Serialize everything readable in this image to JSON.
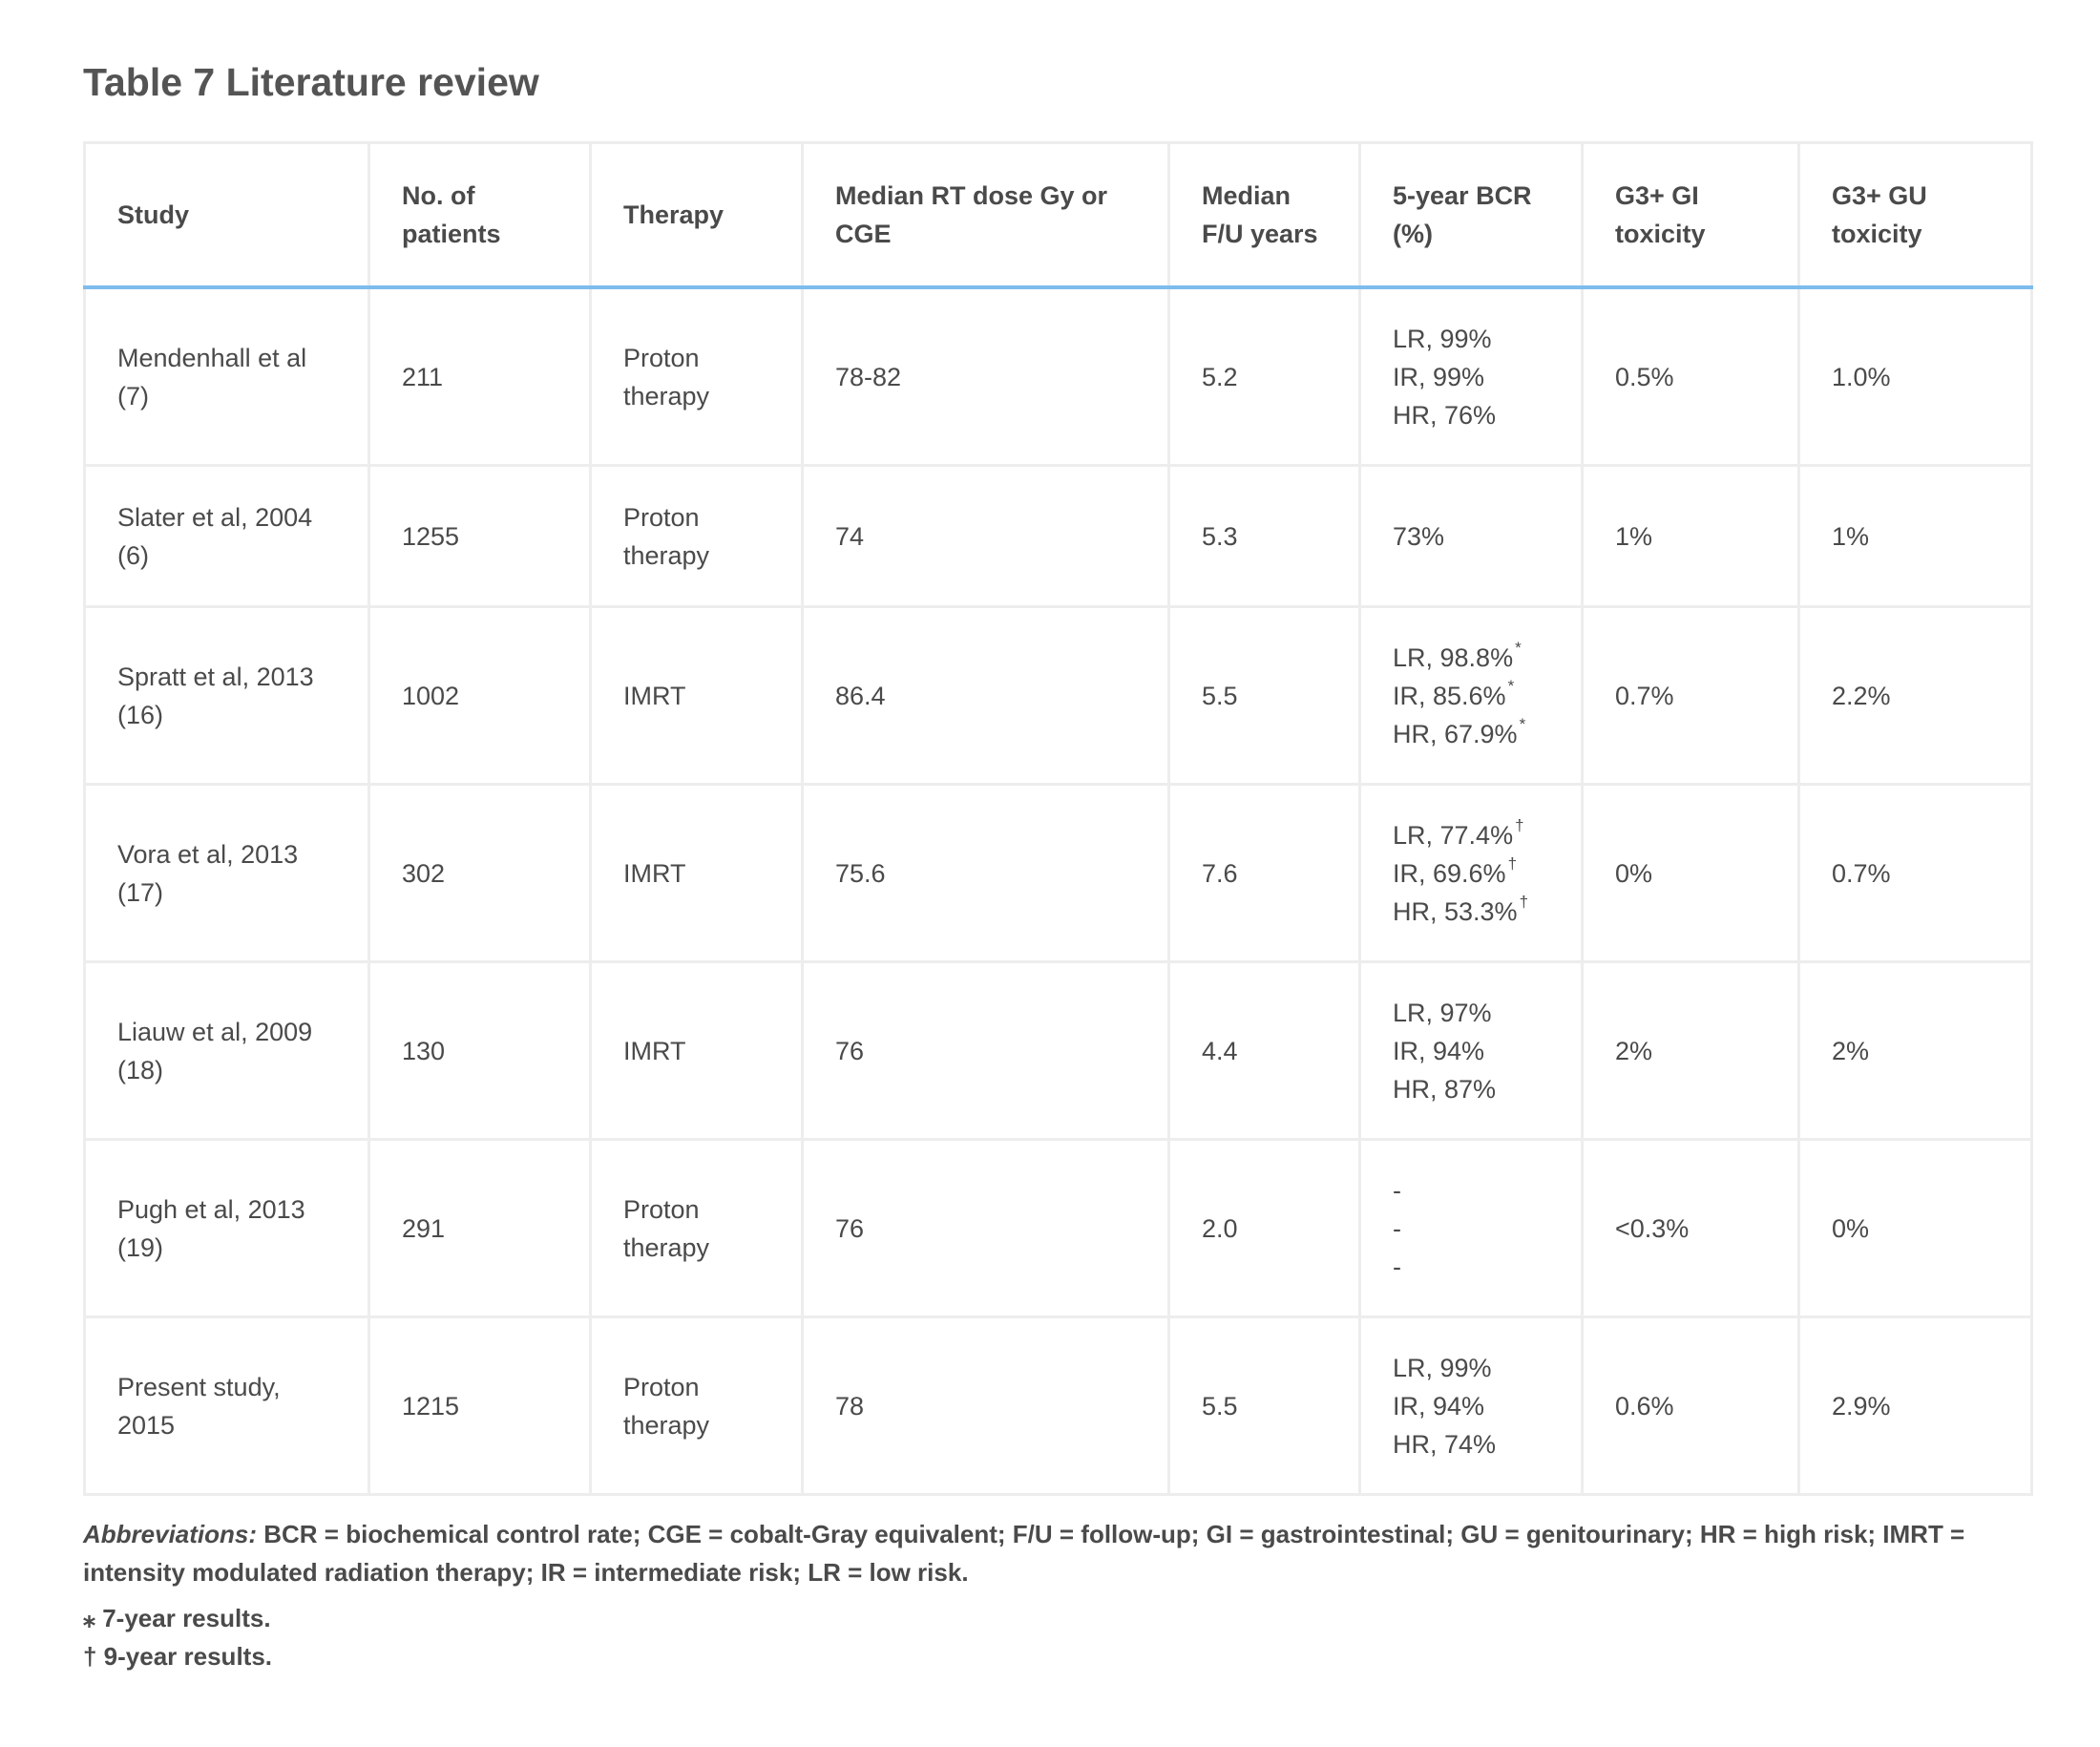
{
  "title": "Table 7  Literature review",
  "table": {
    "headers": [
      [
        "Study"
      ],
      [
        "No. of",
        "patients"
      ],
      [
        "Therapy"
      ],
      [
        "Median RT dose Gy or",
        "CGE"
      ],
      [
        "Median",
        "F/U years"
      ],
      [
        "5-year BCR",
        "(%)"
      ],
      [
        "G3+ GI",
        "toxicity"
      ],
      [
        "G3+ GU",
        "toxicity"
      ]
    ],
    "rows": [
      {
        "study": [
          "Mendenhall et al",
          "(7)"
        ],
        "patients": "211",
        "therapy": [
          "Proton",
          "therapy"
        ],
        "dose": "78-82",
        "followup": "5.2",
        "bcr": [
          {
            "text": "LR, 99%",
            "mark": ""
          },
          {
            "text": "IR, 99%",
            "mark": ""
          },
          {
            "text": "HR, 76%",
            "mark": ""
          }
        ],
        "gi": "0.5%",
        "gu": "1.0%"
      },
      {
        "study": [
          "Slater et al, 2004",
          "(6)"
        ],
        "patients": "1255",
        "therapy": [
          "Proton",
          "therapy"
        ],
        "dose": "74",
        "followup": "5.3",
        "bcr": [
          {
            "text": "73%",
            "mark": ""
          }
        ],
        "gi": "1%",
        "gu": "1%"
      },
      {
        "study": [
          "Spratt et al, 2013",
          "(16)"
        ],
        "patients": "1002",
        "therapy": [
          "IMRT"
        ],
        "dose": "86.4",
        "followup": "5.5",
        "bcr": [
          {
            "text": "LR, 98.8%",
            "mark": "*"
          },
          {
            "text": "IR, 85.6%",
            "mark": "*"
          },
          {
            "text": "HR, 67.9%",
            "mark": "*"
          }
        ],
        "gi": "0.7%",
        "gu": "2.2%"
      },
      {
        "study": [
          "Vora et al, 2013",
          "(17)"
        ],
        "patients": "302",
        "therapy": [
          "IMRT"
        ],
        "dose": "75.6",
        "followup": "7.6",
        "bcr": [
          {
            "text": "LR, 77.4%",
            "mark": "†"
          },
          {
            "text": "IR, 69.6%",
            "mark": "†"
          },
          {
            "text": "HR, 53.3%",
            "mark": "†"
          }
        ],
        "gi": "0%",
        "gu": "0.7%"
      },
      {
        "study": [
          "Liauw et al, 2009",
          "(18)"
        ],
        "patients": "130",
        "therapy": [
          "IMRT"
        ],
        "dose": "76",
        "followup": "4.4",
        "bcr": [
          {
            "text": "LR, 97%",
            "mark": ""
          },
          {
            "text": "IR, 94%",
            "mark": ""
          },
          {
            "text": "HR, 87%",
            "mark": ""
          }
        ],
        "gi": "2%",
        "gu": "2%"
      },
      {
        "study": [
          "Pugh et al, 2013",
          "(19)"
        ],
        "patients": "291",
        "therapy": [
          "Proton",
          "therapy"
        ],
        "dose": "76",
        "followup": "2.0",
        "bcr": [
          {
            "text": "-",
            "mark": ""
          },
          {
            "text": "-",
            "mark": ""
          },
          {
            "text": "-",
            "mark": ""
          }
        ],
        "gi": "<0.3%",
        "gu": "0%"
      },
      {
        "study": [
          "Present study,",
          "2015"
        ],
        "patients": "1215",
        "therapy": [
          "Proton",
          "therapy"
        ],
        "dose": "78",
        "followup": "5.5",
        "bcr": [
          {
            "text": "LR, 99%",
            "mark": ""
          },
          {
            "text": "IR, 94%",
            "mark": ""
          },
          {
            "text": "HR, 74%",
            "mark": ""
          }
        ],
        "gi": "0.6%",
        "gu": "2.9%"
      }
    ]
  },
  "footnotes": {
    "abbreviations_label": "Abbreviations:",
    "abbreviations_text": " BCR = biochemical control rate; CGE = cobalt-Gray equivalent; F/U = follow-up; GI = gastrointestinal; GU = genitourinary; HR = high risk; IMRT = intensity modulated radiation therapy; IR = intermediate risk; LR = low risk.",
    "notes": [
      "⁎ 7-year results.",
      "† 9-year results."
    ]
  }
}
